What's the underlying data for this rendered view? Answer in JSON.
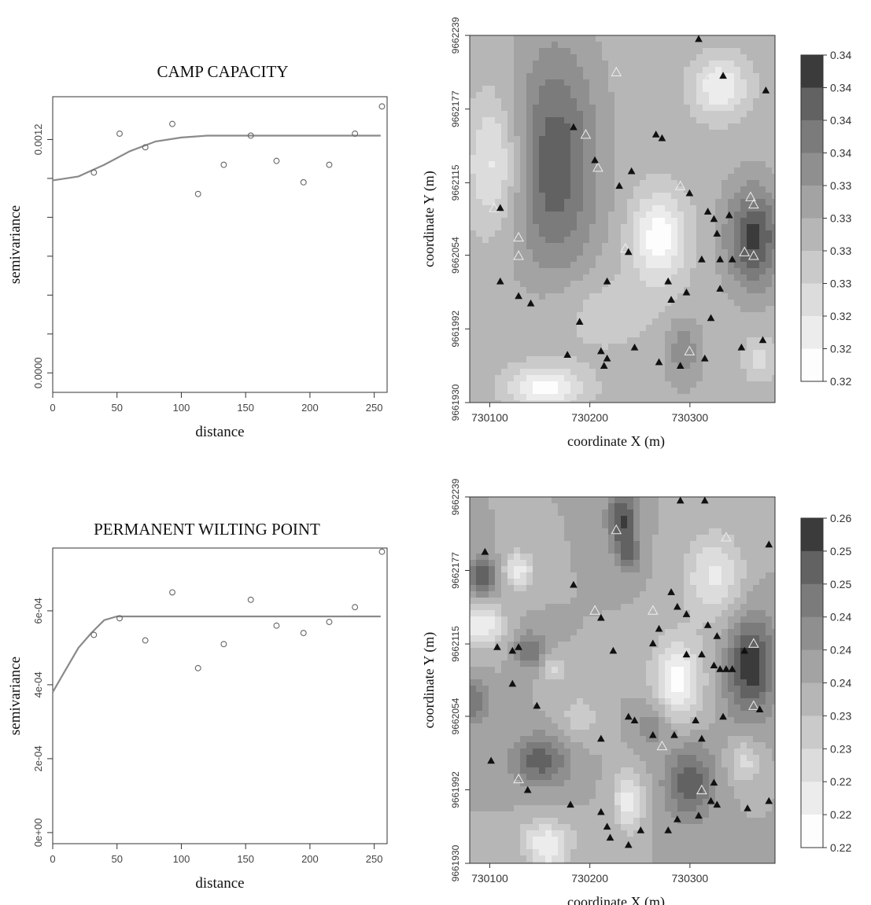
{
  "panels": {
    "cc_title": "CAMP CAPACITY",
    "pwp_title": "PERMANENT WILTING POINT"
  },
  "chart_data": [
    {
      "type": "scatter",
      "name": "cc-variogram",
      "title": "CAMP CAPACITY",
      "xlabel": "distance",
      "ylabel": "semivariance",
      "xlim": [
        0,
        260
      ],
      "x_ticks": [
        "0",
        "50",
        "100",
        "150",
        "200",
        "250"
      ],
      "x_tick_values": [
        0,
        50,
        100,
        150,
        200,
        250
      ],
      "y_ticks": [
        "0.0000",
        "",
        "",
        "",
        "",
        "",
        "0.0012"
      ],
      "y_tick_values": [
        0.0,
        0.0002,
        0.0004,
        0.0006,
        0.0008,
        0.001,
        0.0012
      ],
      "ylim": [
        -0.0001,
        0.00142
      ],
      "x": [
        32,
        52,
        72,
        93,
        113,
        133,
        154,
        174,
        195,
        215,
        235,
        256
      ],
      "y": [
        0.00103,
        0.00123,
        0.00116,
        0.00128,
        0.00092,
        0.00107,
        0.00122,
        0.00109,
        0.00098,
        0.00107,
        0.00123,
        0.00137
      ],
      "model": {
        "x": [
          0,
          20,
          40,
          60,
          80,
          100,
          120,
          150,
          200,
          255
        ],
        "y": [
          0.00099,
          0.00101,
          0.00107,
          0.00114,
          0.00119,
          0.00121,
          0.00122,
          0.00122,
          0.00122,
          0.00122
        ]
      },
      "grid": false
    },
    {
      "type": "heatmap",
      "name": "cc-map",
      "xlabel": "coordinate    X (m)",
      "ylabel": "coordinate    Y (m)",
      "x_ticks": [
        "730100",
        "730200",
        "730300"
      ],
      "x_tick_values": [
        730100,
        730200,
        730300
      ],
      "y_ticks": [
        "9661930",
        "9661992",
        "9662054",
        "9662115",
        "9662177",
        "9662239"
      ],
      "y_tick_values": [
        9661930,
        9661992,
        9662054,
        9662115,
        9662177,
        9662239
      ],
      "xlim": [
        730080,
        730385
      ],
      "ylim": [
        9661930,
        9662239
      ],
      "legend_labels": [
        "0.34",
        "0.34",
        "0.34",
        "0.34",
        "0.33",
        "0.33",
        "0.33",
        "0.33",
        "0.32",
        "0.32",
        "0.32"
      ],
      "levels": 10,
      "legend": "right"
    },
    {
      "type": "scatter",
      "name": "pwp-variogram",
      "title": "PERMANENT WILTING POINT",
      "xlabel": "distance",
      "ylabel": "semivariance",
      "xlim": [
        0,
        260
      ],
      "x_ticks": [
        "0",
        "50",
        "100",
        "150",
        "200",
        "250"
      ],
      "x_tick_values": [
        0,
        50,
        100,
        150,
        200,
        250
      ],
      "y_ticks": [
        "0e+00",
        "2e-04",
        "4e-04",
        "6e-04"
      ],
      "y_tick_values": [
        0,
        0.0002,
        0.0004,
        0.0006
      ],
      "ylim": [
        -3e-05,
        0.00077
      ],
      "x": [
        32,
        52,
        72,
        93,
        113,
        133,
        154,
        174,
        195,
        215,
        235,
        256
      ],
      "y": [
        0.000535,
        0.00058,
        0.00052,
        0.00065,
        0.000445,
        0.00051,
        0.00063,
        0.00056,
        0.00054,
        0.00057,
        0.00061,
        0.00076
      ],
      "model": {
        "x": [
          0,
          10,
          20,
          30,
          40,
          50,
          60,
          100,
          150,
          200,
          255
        ],
        "y": [
          0.00038,
          0.00044,
          0.0005,
          0.00054,
          0.000575,
          0.000585,
          0.000585,
          0.000585,
          0.000585,
          0.000585,
          0.000585
        ]
      },
      "grid": false
    },
    {
      "type": "heatmap",
      "name": "pwp-map",
      "xlabel": "coordinate    X (m)",
      "ylabel": "coordinate    Y (m)",
      "x_ticks": [
        "730100",
        "730200",
        "730300"
      ],
      "x_tick_values": [
        730100,
        730200,
        730300
      ],
      "y_ticks": [
        "9661930",
        "9661992",
        "9662054",
        "9662115",
        "9662177",
        "9662239"
      ],
      "y_tick_values": [
        9661930,
        9661992,
        9662054,
        9662115,
        9662177,
        9662239
      ],
      "xlim": [
        730080,
        730385
      ],
      "ylim": [
        9661930,
        9662239
      ],
      "legend_labels": [
        "0.26",
        "0.25",
        "0.25",
        "0.24",
        "0.24",
        "0.24",
        "0.23",
        "0.23",
        "0.22",
        "0.22",
        "0.22"
      ],
      "levels": 10,
      "legend": "right"
    }
  ]
}
